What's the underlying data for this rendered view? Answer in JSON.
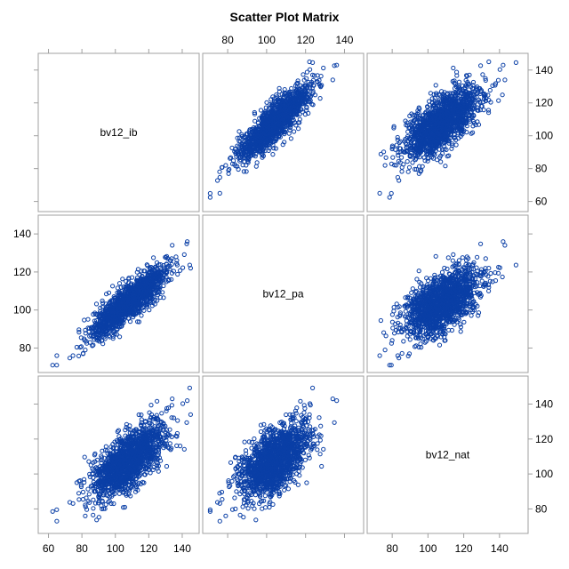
{
  "chart_data": {
    "type": "scatter",
    "title": "Scatter Plot Matrix",
    "variables": [
      "bv12_ib",
      "bv12_pa",
      "bv12_nat"
    ],
    "axes": {
      "bv12_ib": {
        "ticks": [
          60,
          80,
          100,
          120,
          140
        ],
        "range": [
          56,
          148
        ]
      },
      "bv12_pa": {
        "ticks": [
          80,
          100,
          120,
          140
        ],
        "range": [
          69,
          148
        ]
      },
      "bv12_nat": {
        "ticks": [
          80,
          100,
          120,
          140
        ],
        "range": [
          68,
          154
        ]
      }
    },
    "approx_n": 1500,
    "means": {
      "bv12_ib": 108,
      "bv12_pa": 104,
      "bv12_nat": 108
    },
    "std_devs": {
      "bv12_ib": 11,
      "bv12_pa": 9,
      "bv12_nat": 11
    },
    "correlations": [
      {
        "x": "bv12_ib",
        "y": "bv12_pa",
        "r": 0.85
      },
      {
        "x": "bv12_ib",
        "y": "bv12_nat",
        "r": 0.7
      },
      {
        "x": "bv12_pa",
        "y": "bv12_nat",
        "r": 0.55
      }
    ],
    "extreme_points": [
      {
        "bv12_ib": 65,
        "bv12_pa": 76,
        "bv12_nat": 73
      },
      {
        "bv12_ib": 143,
        "bv12_pa": 136,
        "bv12_nat": 142
      },
      {
        "bv12_ib": 134,
        "bv12_pa": 134,
        "bv12_nat": 143
      },
      {
        "bv12_ib": 82,
        "bv12_pa": 79,
        "bv12_nat": 76
      },
      {
        "bv12_ib": 145,
        "bv12_pa": 122,
        "bv12_nat": 134
      },
      {
        "bv12_ib": 92,
        "bv12_pa": 84,
        "bv12_nat": 80
      }
    ],
    "grid": false,
    "legend": "none",
    "marker": "open-circle",
    "colors": {
      "marker": "#0a3fa6",
      "frame": "#a0a0a0",
      "background": "#ffffff",
      "text": "#000000"
    }
  }
}
